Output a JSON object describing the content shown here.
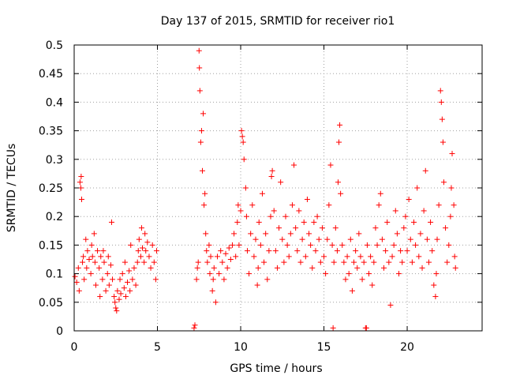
{
  "chart_data": {
    "type": "scatter",
    "title": "Day 137 of 2015, SRMTID for receiver rio1",
    "xlabel": "GPS time / hours",
    "ylabel": "SRMTID / TECUs",
    "xlim": [
      0,
      24.5
    ],
    "ylim": [
      0,
      0.5
    ],
    "grid": true,
    "marker": "plus",
    "color": "#ff0000",
    "x_ticks": [
      {
        "value": 0,
        "label": "0"
      },
      {
        "value": 5,
        "label": "5"
      },
      {
        "value": 10,
        "label": "10"
      },
      {
        "value": 15,
        "label": "15"
      },
      {
        "value": 20,
        "label": "20"
      }
    ],
    "y_ticks": [
      {
        "value": 0,
        "label": "0"
      },
      {
        "value": 0.05,
        "label": "0.05"
      },
      {
        "value": 0.1,
        "label": "0.1"
      },
      {
        "value": 0.15,
        "label": "0.15"
      },
      {
        "value": 0.2,
        "label": "0.2"
      },
      {
        "value": 0.25,
        "label": "0.25"
      },
      {
        "value": 0.3,
        "label": "0.3"
      },
      {
        "value": 0.35,
        "label": "0.35"
      },
      {
        "value": 0.4,
        "label": "0.4"
      },
      {
        "value": 0.45,
        "label": "0.45"
      },
      {
        "value": 0.5,
        "label": "0.5"
      }
    ],
    "series": [
      {
        "name": "SRMTID",
        "points": [
          [
            0.05,
            0.095
          ],
          [
            0.15,
            0.085
          ],
          [
            0.25,
            0.11
          ],
          [
            0.3,
            0.07
          ],
          [
            0.35,
            0.26
          ],
          [
            0.4,
            0.25
          ],
          [
            0.42,
            0.27
          ],
          [
            0.45,
            0.23
          ],
          [
            0.5,
            0.12
          ],
          [
            0.55,
            0.13
          ],
          [
            0.6,
            0.09
          ],
          [
            0.7,
            0.16
          ],
          [
            0.75,
            0.11
          ],
          [
            0.8,
            0.14
          ],
          [
            0.9,
            0.125
          ],
          [
            1.0,
            0.1
          ],
          [
            1.05,
            0.15
          ],
          [
            1.1,
            0.13
          ],
          [
            1.2,
            0.17
          ],
          [
            1.25,
            0.12
          ],
          [
            1.3,
            0.08
          ],
          [
            1.4,
            0.14
          ],
          [
            1.5,
            0.11
          ],
          [
            1.55,
            0.06
          ],
          [
            1.6,
            0.13
          ],
          [
            1.7,
            0.09
          ],
          [
            1.75,
            0.14
          ],
          [
            1.8,
            0.12
          ],
          [
            1.9,
            0.07
          ],
          [
            2.0,
            0.1
          ],
          [
            2.05,
            0.13
          ],
          [
            2.1,
            0.08
          ],
          [
            2.2,
            0.115
          ],
          [
            2.25,
            0.19
          ],
          [
            2.3,
            0.09
          ],
          [
            2.4,
            0.06
          ],
          [
            2.45,
            0.05
          ],
          [
            2.5,
            0.04
          ],
          [
            2.55,
            0.035
          ],
          [
            2.6,
            0.07
          ],
          [
            2.7,
            0.055
          ],
          [
            2.75,
            0.09
          ],
          [
            2.8,
            0.065
          ],
          [
            2.9,
            0.1
          ],
          [
            3.0,
            0.075
          ],
          [
            3.05,
            0.12
          ],
          [
            3.1,
            0.06
          ],
          [
            3.2,
            0.085
          ],
          [
            3.3,
            0.105
          ],
          [
            3.35,
            0.07
          ],
          [
            3.4,
            0.15
          ],
          [
            3.5,
            0.09
          ],
          [
            3.6,
            0.11
          ],
          [
            3.7,
            0.08
          ],
          [
            3.8,
            0.12
          ],
          [
            3.85,
            0.14
          ],
          [
            3.9,
            0.16
          ],
          [
            4.0,
            0.13
          ],
          [
            4.05,
            0.18
          ],
          [
            4.1,
            0.145
          ],
          [
            4.2,
            0.12
          ],
          [
            4.25,
            0.17
          ],
          [
            4.3,
            0.14
          ],
          [
            4.4,
            0.155
          ],
          [
            4.5,
            0.13
          ],
          [
            4.6,
            0.11
          ],
          [
            4.7,
            0.15
          ],
          [
            4.8,
            0.12
          ],
          [
            4.9,
            0.09
          ],
          [
            4.95,
            0.14
          ],
          [
            7.2,
            0.005
          ],
          [
            7.25,
            0.01
          ],
          [
            7.35,
            0.09
          ],
          [
            7.4,
            0.11
          ],
          [
            7.45,
            0.12
          ],
          [
            7.5,
            0.49
          ],
          [
            7.52,
            0.46
          ],
          [
            7.55,
            0.42
          ],
          [
            7.6,
            0.33
          ],
          [
            7.65,
            0.35
          ],
          [
            7.7,
            0.28
          ],
          [
            7.75,
            0.38
          ],
          [
            7.8,
            0.22
          ],
          [
            7.85,
            0.24
          ],
          [
            7.9,
            0.17
          ],
          [
            7.95,
            0.14
          ],
          [
            8.0,
            0.12
          ],
          [
            8.1,
            0.15
          ],
          [
            8.15,
            0.1
          ],
          [
            8.2,
            0.13
          ],
          [
            8.3,
            0.07
          ],
          [
            8.35,
            0.09
          ],
          [
            8.4,
            0.11
          ],
          [
            8.5,
            0.05
          ],
          [
            8.6,
            0.13
          ],
          [
            8.7,
            0.1
          ],
          [
            8.8,
            0.14
          ],
          [
            8.9,
            0.12
          ],
          [
            9.0,
            0.09
          ],
          [
            9.1,
            0.135
          ],
          [
            9.2,
            0.11
          ],
          [
            9.3,
            0.145
          ],
          [
            9.4,
            0.125
          ],
          [
            9.5,
            0.15
          ],
          [
            9.6,
            0.17
          ],
          [
            9.7,
            0.13
          ],
          [
            9.8,
            0.19
          ],
          [
            9.85,
            0.22
          ],
          [
            9.9,
            0.15
          ],
          [
            10.0,
            0.21
          ],
          [
            10.05,
            0.35
          ],
          [
            10.1,
            0.34
          ],
          [
            10.15,
            0.33
          ],
          [
            10.2,
            0.3
          ],
          [
            10.3,
            0.25
          ],
          [
            10.35,
            0.2
          ],
          [
            10.4,
            0.14
          ],
          [
            10.5,
            0.1
          ],
          [
            10.6,
            0.17
          ],
          [
            10.7,
            0.22
          ],
          [
            10.8,
            0.13
          ],
          [
            10.9,
            0.16
          ],
          [
            11.0,
            0.08
          ],
          [
            11.05,
            0.11
          ],
          [
            11.1,
            0.19
          ],
          [
            11.2,
            0.15
          ],
          [
            11.3,
            0.24
          ],
          [
            11.4,
            0.12
          ],
          [
            11.5,
            0.17
          ],
          [
            11.6,
            0.09
          ],
          [
            11.7,
            0.14
          ],
          [
            11.8,
            0.2
          ],
          [
            11.85,
            0.27
          ],
          [
            11.9,
            0.28
          ],
          [
            12.0,
            0.21
          ],
          [
            12.1,
            0.14
          ],
          [
            12.2,
            0.11
          ],
          [
            12.3,
            0.18
          ],
          [
            12.4,
            0.26
          ],
          [
            12.5,
            0.16
          ],
          [
            12.6,
            0.12
          ],
          [
            12.7,
            0.2
          ],
          [
            12.8,
            0.15
          ],
          [
            12.9,
            0.13
          ],
          [
            13.0,
            0.17
          ],
          [
            13.1,
            0.22
          ],
          [
            13.2,
            0.29
          ],
          [
            13.3,
            0.18
          ],
          [
            13.4,
            0.14
          ],
          [
            13.5,
            0.21
          ],
          [
            13.6,
            0.12
          ],
          [
            13.7,
            0.16
          ],
          [
            13.8,
            0.19
          ],
          [
            13.9,
            0.13
          ],
          [
            14.0,
            0.23
          ],
          [
            14.1,
            0.17
          ],
          [
            14.2,
            0.15
          ],
          [
            14.3,
            0.11
          ],
          [
            14.4,
            0.19
          ],
          [
            14.5,
            0.14
          ],
          [
            14.6,
            0.2
          ],
          [
            14.7,
            0.16
          ],
          [
            14.8,
            0.12
          ],
          [
            14.9,
            0.18
          ],
          [
            15.0,
            0.13
          ],
          [
            15.1,
            0.1
          ],
          [
            15.2,
            0.16
          ],
          [
            15.3,
            0.22
          ],
          [
            15.4,
            0.29
          ],
          [
            15.5,
            0.15
          ],
          [
            15.55,
            0.005
          ],
          [
            15.6,
            0.12
          ],
          [
            15.7,
            0.18
          ],
          [
            15.8,
            0.14
          ],
          [
            15.85,
            0.26
          ],
          [
            15.9,
            0.33
          ],
          [
            15.95,
            0.36
          ],
          [
            16.0,
            0.24
          ],
          [
            16.1,
            0.15
          ],
          [
            16.2,
            0.12
          ],
          [
            16.3,
            0.09
          ],
          [
            16.4,
            0.13
          ],
          [
            16.5,
            0.1
          ],
          [
            16.6,
            0.16
          ],
          [
            16.7,
            0.07
          ],
          [
            16.8,
            0.12
          ],
          [
            16.9,
            0.14
          ],
          [
            17.0,
            0.11
          ],
          [
            17.1,
            0.17
          ],
          [
            17.2,
            0.13
          ],
          [
            17.3,
            0.09
          ],
          [
            17.4,
            0.12
          ],
          [
            17.5,
            0.005
          ],
          [
            17.55,
            0.005
          ],
          [
            17.6,
            0.15
          ],
          [
            17.7,
            0.1
          ],
          [
            17.8,
            0.13
          ],
          [
            17.9,
            0.08
          ],
          [
            18.0,
            0.12
          ],
          [
            18.1,
            0.18
          ],
          [
            18.2,
            0.15
          ],
          [
            18.3,
            0.22
          ],
          [
            18.4,
            0.24
          ],
          [
            18.5,
            0.16
          ],
          [
            18.6,
            0.11
          ],
          [
            18.7,
            0.14
          ],
          [
            18.8,
            0.19
          ],
          [
            18.9,
            0.12
          ],
          [
            19.0,
            0.045
          ],
          [
            19.1,
            0.13
          ],
          [
            19.2,
            0.15
          ],
          [
            19.3,
            0.21
          ],
          [
            19.4,
            0.17
          ],
          [
            19.5,
            0.1
          ],
          [
            19.6,
            0.14
          ],
          [
            19.7,
            0.12
          ],
          [
            19.8,
            0.18
          ],
          [
            19.9,
            0.2
          ],
          [
            20.0,
            0.14
          ],
          [
            20.1,
            0.23
          ],
          [
            20.2,
            0.16
          ],
          [
            20.3,
            0.12
          ],
          [
            20.4,
            0.19
          ],
          [
            20.5,
            0.15
          ],
          [
            20.6,
            0.25
          ],
          [
            20.7,
            0.13
          ],
          [
            20.8,
            0.17
          ],
          [
            20.9,
            0.11
          ],
          [
            21.0,
            0.21
          ],
          [
            21.1,
            0.28
          ],
          [
            21.2,
            0.16
          ],
          [
            21.3,
            0.12
          ],
          [
            21.4,
            0.19
          ],
          [
            21.5,
            0.14
          ],
          [
            21.6,
            0.08
          ],
          [
            21.7,
            0.06
          ],
          [
            21.75,
            0.1
          ],
          [
            21.8,
            0.16
          ],
          [
            21.9,
            0.22
          ],
          [
            22.0,
            0.42
          ],
          [
            22.05,
            0.4
          ],
          [
            22.1,
            0.37
          ],
          [
            22.15,
            0.33
          ],
          [
            22.2,
            0.26
          ],
          [
            22.3,
            0.18
          ],
          [
            22.4,
            0.12
          ],
          [
            22.5,
            0.15
          ],
          [
            22.6,
            0.2
          ],
          [
            22.65,
            0.25
          ],
          [
            22.7,
            0.31
          ],
          [
            22.8,
            0.22
          ],
          [
            22.85,
            0.13
          ],
          [
            22.9,
            0.11
          ]
        ]
      }
    ]
  }
}
